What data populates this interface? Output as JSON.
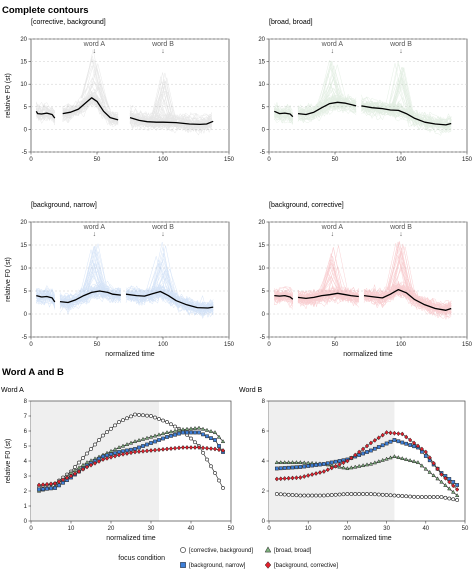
{
  "sections": {
    "complete": "Complete contours",
    "words": "Word A and B"
  },
  "colors": {
    "corrective_background": "#8c8c8c",
    "broad_broad": "#7fb27f",
    "background_narrow": "#3d7fd9",
    "background_corrective": "#e0202c",
    "mean_line": "#000000",
    "shade": "#efefef"
  },
  "chart_data": [
    {
      "type": "line",
      "title": "[corrective, background]",
      "xlabel": "",
      "ylabel": "relative F0 (st)",
      "xlim": [
        0,
        150
      ],
      "ylim": [
        -5,
        20
      ],
      "xticks": [
        0,
        50,
        100,
        150
      ],
      "yticks": [
        -5,
        0,
        5,
        10,
        15,
        20
      ],
      "annotations": [
        {
          "text": "word A",
          "x": 48
        },
        {
          "text": "word B",
          "x": 100
        }
      ],
      "series": [
        {
          "values": [
            [
              4,
              4
            ],
            [
              5,
              3.5
            ],
            [
              8,
              3.4
            ],
            [
              12,
              3.6
            ],
            [
              16,
              3.3
            ],
            [
              18,
              2.5
            ]
          ]
        },
        {
          "values": [
            [
              24,
              3.5
            ],
            [
              30,
              3.8
            ],
            [
              36,
              4.5
            ],
            [
              42,
              6.0
            ],
            [
              46,
              7.0
            ],
            [
              50,
              6.2
            ],
            [
              55,
              4.0
            ],
            [
              60,
              2.6
            ],
            [
              66,
              2.1
            ]
          ]
        },
        {
          "values": [
            [
              75,
              2.6
            ],
            [
              82,
              2.0
            ],
            [
              88,
              1.7
            ],
            [
              95,
              1.6
            ],
            [
              100,
              1.6
            ],
            [
              110,
              1.5
            ],
            [
              120,
              1.2
            ],
            [
              128,
              1.1
            ],
            [
              133,
              1.2
            ],
            [
              138,
              1.8
            ]
          ]
        }
      ]
    },
    {
      "type": "line",
      "title": "[broad, broad]",
      "xlabel": "",
      "ylabel": "",
      "xlim": [
        0,
        150
      ],
      "ylim": [
        -5,
        20
      ],
      "xticks": [
        0,
        50,
        100,
        150
      ],
      "yticks": [
        -5,
        0,
        5,
        10,
        15,
        20
      ],
      "annotations": [
        {
          "text": "word A",
          "x": 48
        },
        {
          "text": "word B",
          "x": 100
        }
      ],
      "series": [
        {
          "values": [
            [
              4,
              4
            ],
            [
              8,
              3.5
            ],
            [
              12,
              3.6
            ],
            [
              16,
              3.4
            ],
            [
              18,
              2.8
            ]
          ]
        },
        {
          "values": [
            [
              22,
              3.5
            ],
            [
              28,
              3.3
            ],
            [
              34,
              3.8
            ],
            [
              40,
              4.8
            ],
            [
              46,
              5.7
            ],
            [
              52,
              6.0
            ],
            [
              58,
              5.8
            ],
            [
              62,
              5.5
            ],
            [
              66,
              5.2
            ]
          ]
        },
        {
          "values": [
            [
              70,
              5.2
            ],
            [
              78,
              4.8
            ],
            [
              86,
              4.6
            ],
            [
              92,
              4.3
            ],
            [
              98,
              4.2
            ],
            [
              104,
              3.5
            ],
            [
              110,
              2.5
            ],
            [
              118,
              1.6
            ],
            [
              126,
              1.2
            ],
            [
              134,
              1.0
            ],
            [
              138,
              1.3
            ]
          ]
        }
      ]
    },
    {
      "type": "line",
      "title": "[background, narrow]",
      "xlabel": "normalized time",
      "ylabel": "relative F0 (st)",
      "xlim": [
        0,
        150
      ],
      "ylim": [
        -5,
        20
      ],
      "xticks": [
        0,
        50,
        100,
        150
      ],
      "yticks": [
        -5,
        0,
        5,
        10,
        15,
        20
      ],
      "annotations": [
        {
          "text": "word A",
          "x": 48
        },
        {
          "text": "word B",
          "x": 100
        }
      ],
      "series": [
        {
          "values": [
            [
              4,
              4
            ],
            [
              8,
              3.7
            ],
            [
              12,
              3.8
            ],
            [
              16,
              3.5
            ],
            [
              18,
              2.6
            ]
          ]
        },
        {
          "values": [
            [
              22,
              2.7
            ],
            [
              28,
              2.5
            ],
            [
              34,
              3.1
            ],
            [
              40,
              4.0
            ],
            [
              46,
              4.7
            ],
            [
              52,
              5.0
            ],
            [
              58,
              4.7
            ],
            [
              62,
              4.3
            ],
            [
              68,
              4.1
            ]
          ]
        },
        {
          "values": [
            [
              72,
              4.3
            ],
            [
              80,
              4.0
            ],
            [
              86,
              3.9
            ],
            [
              92,
              4.4
            ],
            [
              98,
              4.9
            ],
            [
              104,
              4.0
            ],
            [
              110,
              2.9
            ],
            [
              118,
              2.0
            ],
            [
              126,
              1.4
            ],
            [
              134,
              1.3
            ],
            [
              138,
              1.5
            ]
          ]
        }
      ]
    },
    {
      "type": "line",
      "title": "[background, corrective]",
      "xlabel": "normalized time",
      "ylabel": "",
      "xlim": [
        0,
        150
      ],
      "ylim": [
        -5,
        20
      ],
      "xticks": [
        0,
        50,
        100,
        150
      ],
      "yticks": [
        -5,
        0,
        5,
        10,
        15,
        20
      ],
      "annotations": [
        {
          "text": "word A",
          "x": 48
        },
        {
          "text": "word B",
          "x": 100
        }
      ],
      "series": [
        {
          "values": [
            [
              4,
              4
            ],
            [
              8,
              3.9
            ],
            [
              12,
              4.0
            ],
            [
              16,
              3.7
            ],
            [
              18,
              3.2
            ]
          ]
        },
        {
          "values": [
            [
              22,
              3.6
            ],
            [
              28,
              3.4
            ],
            [
              34,
              3.6
            ],
            [
              40,
              4.0
            ],
            [
              46,
              4.2
            ],
            [
              52,
              4.5
            ],
            [
              58,
              4.2
            ],
            [
              62,
              4.0
            ],
            [
              68,
              3.8
            ]
          ]
        },
        {
          "values": [
            [
              72,
              4.0
            ],
            [
              80,
              3.7
            ],
            [
              86,
              3.5
            ],
            [
              92,
              4.3
            ],
            [
              98,
              5.3
            ],
            [
              104,
              4.6
            ],
            [
              110,
              3.2
            ],
            [
              118,
              2.0
            ],
            [
              126,
              1.2
            ],
            [
              134,
              0.8
            ],
            [
              138,
              1.2
            ]
          ]
        }
      ]
    },
    {
      "type": "line",
      "title": "Word A",
      "xlabel": "normalized time",
      "ylabel": "relative F0 (st)",
      "xlim": [
        0,
        50
      ],
      "ylim": [
        0,
        8
      ],
      "xticks": [
        0,
        10,
        20,
        30,
        40,
        50
      ],
      "yticks": [
        0,
        1,
        2,
        3,
        4,
        5,
        6,
        7,
        8
      ],
      "shaded_region": [
        0,
        32
      ],
      "series": [
        {
          "name": "[corrective, background]",
          "values": [
            [
              2,
              2.3
            ],
            [
              6,
              2.5
            ],
            [
              10,
              3.3
            ],
            [
              14,
              4.5
            ],
            [
              18,
              5.7
            ],
            [
              22,
              6.6
            ],
            [
              26,
              7.1
            ],
            [
              30,
              7.0
            ],
            [
              34,
              6.6
            ],
            [
              38,
              6.0
            ],
            [
              42,
              5.0
            ],
            [
              46,
              3.2
            ],
            [
              48,
              2.2
            ]
          ]
        },
        {
          "name": "[broad, broad]",
          "values": [
            [
              2,
              2.0
            ],
            [
              6,
              2.3
            ],
            [
              10,
              3.2
            ],
            [
              14,
              3.9
            ],
            [
              18,
              4.4
            ],
            [
              22,
              4.9
            ],
            [
              26,
              5.3
            ],
            [
              30,
              5.6
            ],
            [
              34,
              5.9
            ],
            [
              38,
              6.1
            ],
            [
              42,
              6.2
            ],
            [
              46,
              5.9
            ],
            [
              48,
              5.3
            ]
          ]
        },
        {
          "name": "[background, narrow]",
          "values": [
            [
              2,
              2.1
            ],
            [
              6,
              2.2
            ],
            [
              10,
              2.9
            ],
            [
              14,
              3.7
            ],
            [
              18,
              4.3
            ],
            [
              22,
              4.6
            ],
            [
              26,
              4.8
            ],
            [
              30,
              5.2
            ],
            [
              34,
              5.6
            ],
            [
              38,
              5.9
            ],
            [
              42,
              5.9
            ],
            [
              46,
              5.4
            ],
            [
              48,
              4.6
            ]
          ]
        },
        {
          "name": "[background, corrective]",
          "values": [
            [
              2,
              2.4
            ],
            [
              6,
              2.5
            ],
            [
              10,
              3.0
            ],
            [
              14,
              3.6
            ],
            [
              18,
              4.1
            ],
            [
              22,
              4.4
            ],
            [
              26,
              4.6
            ],
            [
              30,
              4.7
            ],
            [
              34,
              4.8
            ],
            [
              38,
              4.9
            ],
            [
              42,
              4.9
            ],
            [
              46,
              4.8
            ],
            [
              48,
              4.7
            ]
          ]
        }
      ]
    },
    {
      "type": "line",
      "title": "Word B",
      "xlabel": "normalized time",
      "ylabel": "",
      "xlim": [
        0,
        50
      ],
      "ylim": [
        0,
        8
      ],
      "xticks": [
        0,
        10,
        20,
        30,
        40,
        50
      ],
      "yticks": [
        0,
        2,
        4,
        6,
        8
      ],
      "shaded_region": [
        0,
        32
      ],
      "series": [
        {
          "name": "[corrective, background]",
          "values": [
            [
              2,
              1.8
            ],
            [
              8,
              1.7
            ],
            [
              14,
              1.7
            ],
            [
              20,
              1.8
            ],
            [
              26,
              1.8
            ],
            [
              32,
              1.7
            ],
            [
              38,
              1.6
            ],
            [
              44,
              1.6
            ],
            [
              48,
              1.4
            ]
          ]
        },
        {
          "name": "[broad, broad]",
          "values": [
            [
              2,
              3.9
            ],
            [
              8,
              3.9
            ],
            [
              14,
              3.8
            ],
            [
              20,
              3.5
            ],
            [
              26,
              3.8
            ],
            [
              32,
              4.3
            ],
            [
              38,
              3.9
            ],
            [
              44,
              2.6
            ],
            [
              48,
              1.7
            ]
          ]
        },
        {
          "name": "[background, narrow]",
          "values": [
            [
              2,
              3.5
            ],
            [
              8,
              3.6
            ],
            [
              14,
              3.8
            ],
            [
              20,
              4.1
            ],
            [
              26,
              4.7
            ],
            [
              32,
              5.4
            ],
            [
              38,
              4.9
            ],
            [
              44,
              3.2
            ],
            [
              48,
              2.4
            ]
          ]
        },
        {
          "name": "[background, corrective]",
          "values": [
            [
              2,
              2.8
            ],
            [
              8,
              2.9
            ],
            [
              14,
              3.3
            ],
            [
              20,
              4.0
            ],
            [
              26,
              5.2
            ],
            [
              30,
              5.9
            ],
            [
              34,
              5.8
            ],
            [
              40,
              4.6
            ],
            [
              44,
              3.1
            ],
            [
              48,
              2.1
            ]
          ]
        }
      ]
    }
  ],
  "legend": {
    "title": "focus condition",
    "items": [
      {
        "label": "[corrective, background]",
        "marker": "circle"
      },
      {
        "label": "[broad, broad]",
        "marker": "triangle"
      },
      {
        "label": "[background, narrow]",
        "marker": "square"
      },
      {
        "label": "[background, corrective]",
        "marker": "diamond"
      }
    ]
  }
}
